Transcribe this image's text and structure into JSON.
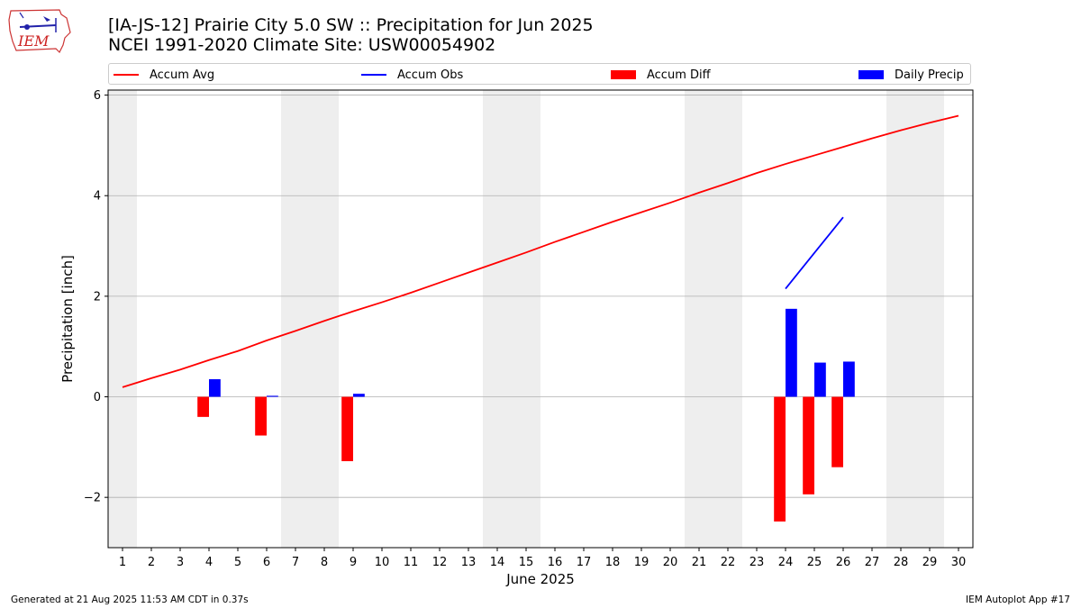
{
  "header": {
    "title_line1": "[IA-JS-12] Prairie City 5.0 SW :: Precipitation for Jun 2025",
    "title_line2": "NCEI 1991-2020 Climate Site: USW00054902"
  },
  "logo": {
    "text": "IEM"
  },
  "footer": {
    "generated": "Generated at 21 Aug 2025 11:53 AM CDT in 0.37s",
    "app": "IEM Autoplot App #17"
  },
  "colors": {
    "accum_avg": "#ff0000",
    "accum_obs": "#0000ff",
    "accum_diff": "#ff0000",
    "daily_precip": "#0000ff",
    "weekend_shade": "#eeeeee",
    "grid": "#b0b0b0"
  },
  "chart_data": {
    "type": "bar",
    "xlabel": "June 2025",
    "ylabel": "Precipitation [inch]",
    "xlim": [
      0.5,
      30.5
    ],
    "ylim": [
      -3,
      6.1
    ],
    "yticks": [
      -2,
      0,
      2,
      4,
      6
    ],
    "ytick_labels": [
      "−2",
      "0",
      "2",
      "4",
      "6"
    ],
    "xticks": [
      1,
      2,
      3,
      4,
      5,
      6,
      7,
      8,
      9,
      10,
      11,
      12,
      13,
      14,
      15,
      16,
      17,
      18,
      19,
      20,
      21,
      22,
      23,
      24,
      25,
      26,
      27,
      28,
      29,
      30
    ],
    "xtick_labels": [
      "1",
      "2",
      "3",
      "4",
      "5",
      "6",
      "7",
      "8",
      "9",
      "10",
      "11",
      "12",
      "13",
      "14",
      "15",
      "16",
      "17",
      "18",
      "19",
      "20",
      "21",
      "22",
      "23",
      "24",
      "25",
      "26",
      "27",
      "28",
      "29",
      "30"
    ],
    "grid": "horizontal",
    "legend_position": "top",
    "weekend_spans": [
      [
        0.5,
        1.5
      ],
      [
        6.5,
        8.5
      ],
      [
        13.5,
        15.5
      ],
      [
        20.5,
        22.5
      ],
      [
        27.5,
        29.5
      ]
    ],
    "series": [
      {
        "name": "Accum Avg",
        "kind": "line",
        "x": [
          1,
          2,
          3,
          4,
          5,
          6,
          7,
          8,
          9,
          10,
          11,
          12,
          13,
          14,
          15,
          16,
          17,
          18,
          19,
          20,
          21,
          22,
          23,
          24,
          25,
          26,
          27,
          28,
          29,
          30
        ],
        "values": [
          0.19,
          0.37,
          0.54,
          0.73,
          0.91,
          1.12,
          1.31,
          1.51,
          1.7,
          1.88,
          2.07,
          2.27,
          2.47,
          2.67,
          2.87,
          3.08,
          3.28,
          3.48,
          3.67,
          3.86,
          4.06,
          4.25,
          4.45,
          4.63,
          4.8,
          4.97,
          5.14,
          5.3,
          5.45,
          5.59
        ]
      },
      {
        "name": "Accum Obs",
        "kind": "line",
        "x": [
          24,
          25,
          26
        ],
        "values": [
          2.15,
          2.86,
          3.57
        ]
      },
      {
        "name": "Accum Diff",
        "kind": "bar",
        "x": [
          4,
          6,
          9,
          24,
          25,
          26
        ],
        "values": [
          -0.4,
          -0.77,
          -1.28,
          -2.48,
          -1.94,
          -1.4
        ]
      },
      {
        "name": "Daily Precip",
        "kind": "bar",
        "x": [
          4,
          6,
          9,
          24,
          25,
          26
        ],
        "values": [
          0.35,
          0.02,
          0.06,
          1.75,
          0.68,
          0.7
        ]
      }
    ]
  }
}
